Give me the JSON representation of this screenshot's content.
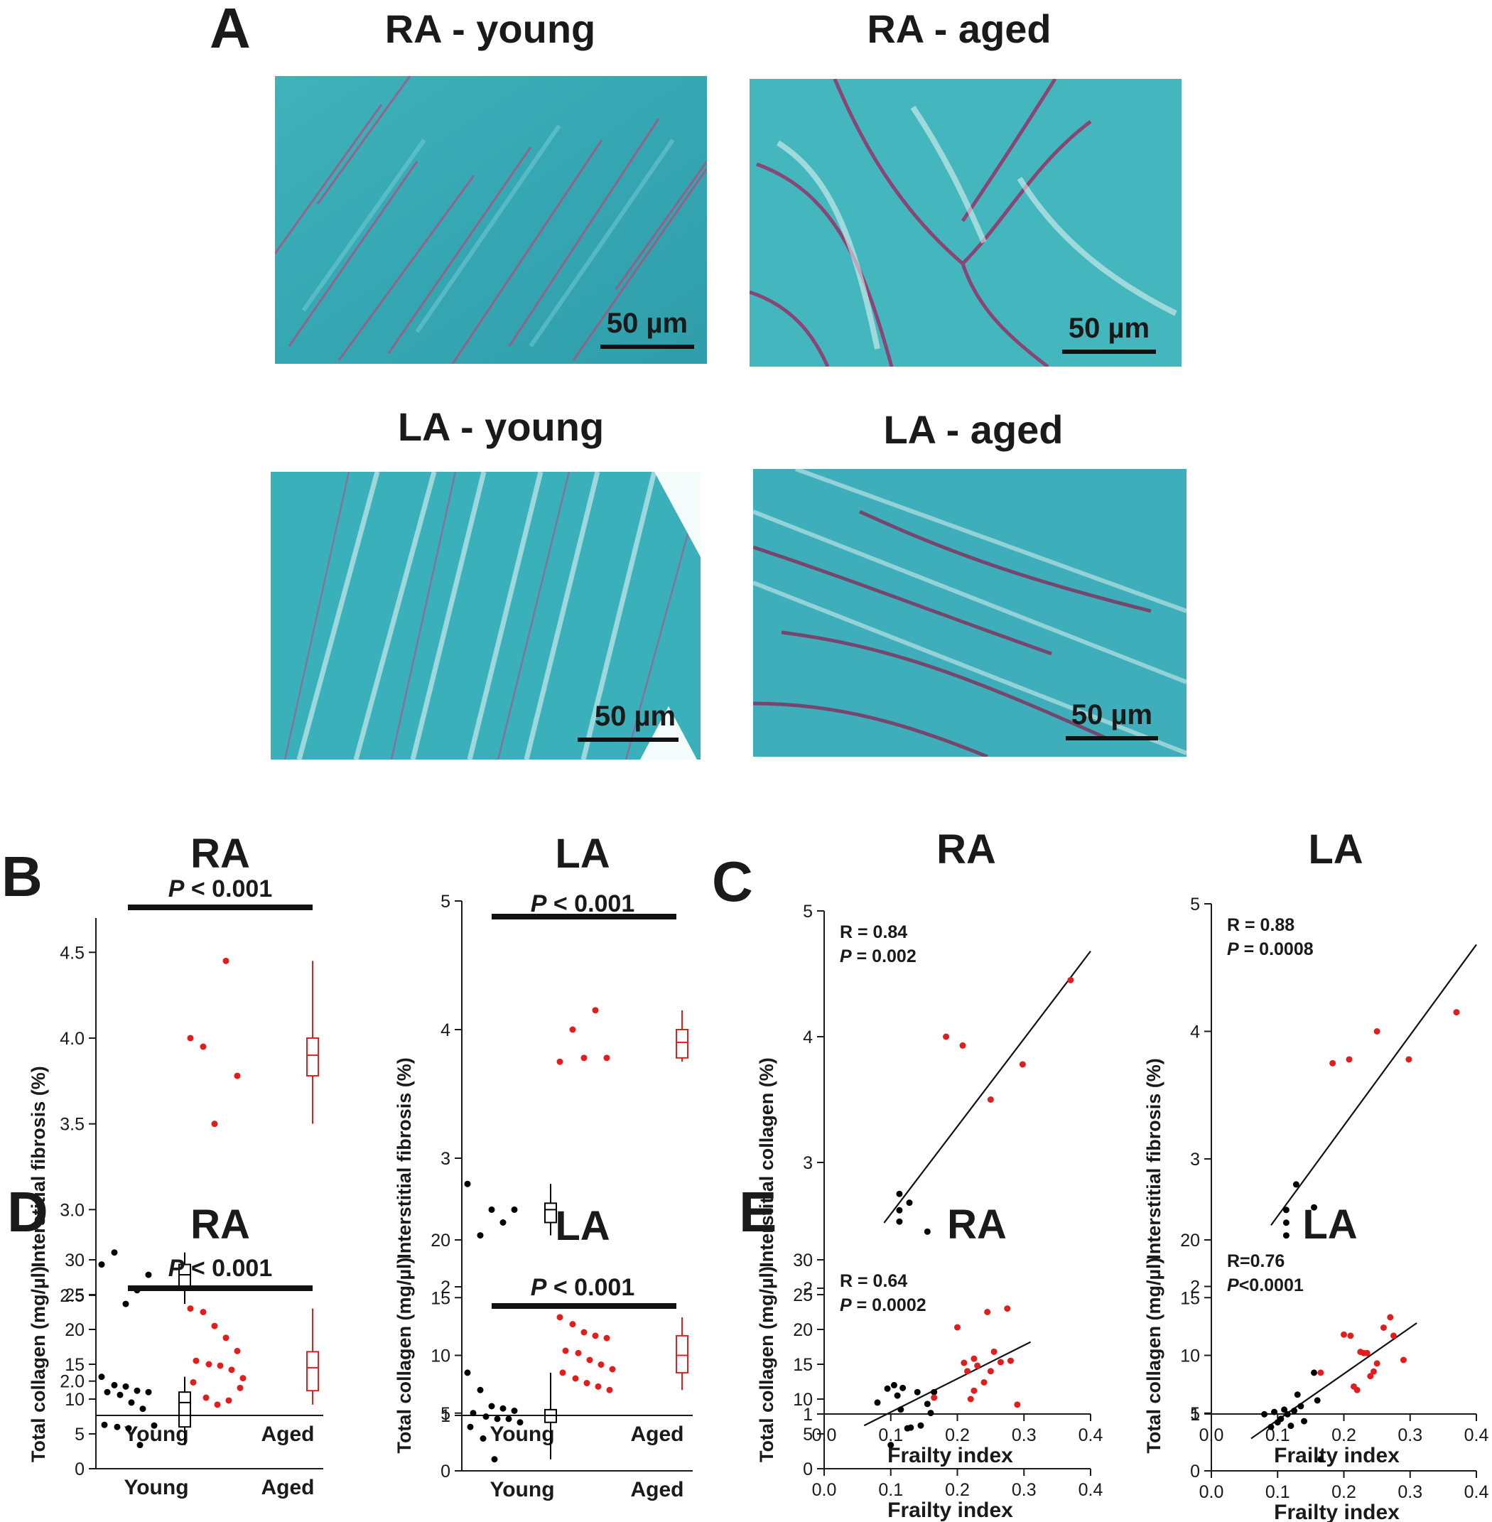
{
  "panel_labels": {
    "A": "A",
    "B": "B",
    "C": "C",
    "D": "D",
    "E": "E"
  },
  "micrographs": [
    {
      "title": "RA - young",
      "scale_bar": "50 µm"
    },
    {
      "title": "RA - aged",
      "scale_bar": "50 µm"
    },
    {
      "title": "LA - young",
      "scale_bar": "50 µm"
    },
    {
      "title": "LA - aged",
      "scale_bar": "50 µm"
    }
  ],
  "colors": {
    "young": "#000000",
    "aged": "#e01e1e",
    "tissue": "#3bb0b8",
    "collagen": "#a0306a"
  },
  "chart_data": [
    {
      "id": "B-RA",
      "type": "scatter",
      "title": "RA",
      "ylabel": "Interstitial fibrosis (%)",
      "categories": [
        "Young",
        "Aged"
      ],
      "ylim": [
        1.8,
        4.7
      ],
      "yticks": [
        "2.0",
        "2.5",
        "3.0",
        "3.5",
        "4.0",
        "4.5"
      ],
      "ytick_values": [
        2.0,
        2.5,
        3.0,
        3.5,
        4.0,
        4.5
      ],
      "significance": "P < 0.001",
      "series": [
        {
          "name": "Young",
          "values": [
            2.68,
            2.75,
            2.45,
            2.53,
            2.62
          ],
          "box": {
            "min": 2.45,
            "q1": 2.53,
            "median": 2.62,
            "q3": 2.68,
            "max": 2.75
          }
        },
        {
          "name": "Aged",
          "values": [
            4.0,
            3.95,
            3.5,
            4.45,
            3.78
          ],
          "box": {
            "min": 3.5,
            "q1": 3.78,
            "median": 3.9,
            "q3": 4.0,
            "max": 4.45
          }
        }
      ]
    },
    {
      "id": "B-LA",
      "type": "scatter",
      "title": "LA",
      "ylabel": "Interstitial fibrosis (%)",
      "categories": [
        "Young",
        "Aged"
      ],
      "ylim": [
        1,
        5
      ],
      "yticks": [
        "1",
        "2",
        "3",
        "4",
        "5"
      ],
      "ytick_values": [
        1,
        2,
        3,
        4,
        5
      ],
      "significance": "P < 0.001",
      "series": [
        {
          "name": "Young",
          "values": [
            2.8,
            2.4,
            2.6,
            2.5,
            2.6
          ],
          "box": {
            "min": 2.4,
            "q1": 2.5,
            "median": 2.6,
            "q3": 2.65,
            "max": 2.8
          }
        },
        {
          "name": "Aged",
          "values": [
            3.75,
            4.0,
            3.78,
            4.15,
            3.78
          ],
          "box": {
            "min": 3.75,
            "q1": 3.78,
            "median": 3.9,
            "q3": 4.0,
            "max": 4.15
          }
        }
      ]
    },
    {
      "id": "C-RA",
      "type": "scatter",
      "title": "RA",
      "xlabel": "Frailty index",
      "ylabel": "Interstitial collagen (%)",
      "xlim": [
        0.0,
        0.4
      ],
      "ylim": [
        1,
        5
      ],
      "xticks": [
        "0.0",
        "0.1",
        "0.2",
        "0.3",
        "0.4"
      ],
      "xtick_values": [
        0.0,
        0.1,
        0.2,
        0.3,
        0.4
      ],
      "yticks": [
        "1",
        "2",
        "3",
        "4",
        "5"
      ],
      "ytick_values": [
        1,
        2,
        3,
        4,
        5
      ],
      "annotation": {
        "r": "R = 0.84",
        "p_italic": "P",
        "p_rest": " = 0.002"
      },
      "fit": {
        "x": [
          0.09,
          0.4
        ],
        "y": [
          2.52,
          4.68
        ]
      },
      "series": [
        {
          "name": "Young",
          "x": [
            0.113,
            0.113,
            0.113,
            0.128,
            0.155
          ],
          "y": [
            2.75,
            2.62,
            2.53,
            2.68,
            2.45
          ]
        },
        {
          "name": "Aged",
          "x": [
            0.183,
            0.208,
            0.25,
            0.298,
            0.37
          ],
          "y": [
            4.0,
            3.93,
            3.5,
            3.78,
            4.45
          ]
        }
      ]
    },
    {
      "id": "C-LA",
      "type": "scatter",
      "title": "LA",
      "xlabel": "Frailty index",
      "ylabel": "Interstitial fibrosis (%)",
      "xlim": [
        0.0,
        0.4
      ],
      "ylim": [
        1,
        5
      ],
      "xticks": [
        "0.0",
        "0.1",
        "0.2",
        "0.3",
        "0.4"
      ],
      "xtick_values": [
        0.0,
        0.1,
        0.2,
        0.3,
        0.4
      ],
      "yticks": [
        "1",
        "2",
        "3",
        "4",
        "5"
      ],
      "ytick_values": [
        1,
        2,
        3,
        4,
        5
      ],
      "annotation": {
        "r": "R = 0.88",
        "p_italic": "P",
        "p_rest": " = 0.0008"
      },
      "fit": {
        "x": [
          0.09,
          0.4
        ],
        "y": [
          2.48,
          4.68
        ]
      },
      "series": [
        {
          "name": "Young",
          "x": [
            0.113,
            0.113,
            0.113,
            0.128,
            0.155
          ],
          "y": [
            2.6,
            2.5,
            2.4,
            2.8,
            2.62
          ]
        },
        {
          "name": "Aged",
          "x": [
            0.183,
            0.208,
            0.25,
            0.298,
            0.37
          ],
          "y": [
            3.75,
            3.78,
            4.0,
            3.78,
            4.15
          ]
        }
      ]
    },
    {
      "id": "D-RA",
      "type": "scatter",
      "title": "RA",
      "ylabel": "Total collagen (mg/µl)",
      "categories": [
        "Young",
        "Aged"
      ],
      "ylim": [
        0,
        30
      ],
      "yticks": [
        "0",
        "5",
        "10",
        "15",
        "20",
        "25",
        "30"
      ],
      "ytick_values": [
        0,
        5,
        10,
        15,
        20,
        25,
        30
      ],
      "significance": "P < 0.001",
      "series": [
        {
          "name": "Young",
          "values": [
            13.2,
            12.0,
            11.8,
            11.2,
            11.0,
            11.0,
            10.6,
            9.5,
            8.6,
            6.2,
            6.3,
            6.0,
            5.8,
            3.4
          ],
          "box": {
            "min": 3.4,
            "q1": 6.0,
            "median": 9.5,
            "q3": 11.0,
            "max": 13.2
          }
        },
        {
          "name": "Aged",
          "values": [
            23.0,
            22.5,
            20.5,
            18.8,
            16.9,
            15.5,
            15.0,
            14.8,
            14.2,
            13.0,
            12.4,
            10.2,
            9.2,
            9.8,
            11.6
          ],
          "box": {
            "min": 9.2,
            "q1": 11.2,
            "median": 14.5,
            "q3": 16.8,
            "max": 23.0
          }
        }
      ]
    },
    {
      "id": "D-LA",
      "type": "scatter",
      "title": "LA",
      "ylabel": "Total collagen (mg/µl)",
      "categories": [
        "Young",
        "Aged"
      ],
      "ylim": [
        0,
        20
      ],
      "yticks": [
        "0",
        "5",
        "10",
        "15",
        "20"
      ],
      "ytick_values": [
        0,
        5,
        10,
        15,
        20
      ],
      "significance": "P < 0.001",
      "series": [
        {
          "name": "Young",
          "values": [
            8.5,
            7.0,
            5.6,
            5.4,
            5.2,
            5.0,
            4.7,
            4.5,
            4.5,
            4.2,
            3.8,
            2.8,
            1.0
          ],
          "box": {
            "min": 1.0,
            "q1": 4.2,
            "median": 4.8,
            "q3": 5.3,
            "max": 8.5
          }
        },
        {
          "name": "Aged",
          "values": [
            13.3,
            12.7,
            12.0,
            11.7,
            11.5,
            10.4,
            10.2,
            9.6,
            9.2,
            8.8,
            8.5,
            8.0,
            7.6,
            7.3,
            7.0
          ],
          "box": {
            "min": 7.0,
            "q1": 8.5,
            "median": 10.0,
            "q3": 11.7,
            "max": 13.3
          }
        }
      ]
    },
    {
      "id": "E-RA",
      "type": "scatter",
      "title": "RA",
      "xlabel": "Frailty index",
      "ylabel": "Total collagen (mg/µl)",
      "xlim": [
        0.0,
        0.4
      ],
      "ylim": [
        0,
        30
      ],
      "xticks": [
        "0.0",
        "0.1",
        "0.2",
        "0.3",
        "0.4"
      ],
      "xtick_values": [
        0.0,
        0.1,
        0.2,
        0.3,
        0.4
      ],
      "yticks": [
        "0",
        "5",
        "10",
        "15",
        "20",
        "25",
        "30"
      ],
      "ytick_values": [
        0,
        5,
        10,
        15,
        20,
        25,
        30
      ],
      "annotation": {
        "r": "R = 0.64",
        "p_italic": "P",
        "p_rest": " = 0.0002"
      },
      "fit": {
        "x": [
          0.06,
          0.31
        ],
        "y": [
          6.2,
          18.2
        ]
      },
      "series": [
        {
          "name": "Young",
          "x": [
            0.08,
            0.095,
            0.105,
            0.11,
            0.115,
            0.118,
            0.125,
            0.13,
            0.14,
            0.145,
            0.155,
            0.16,
            0.165,
            0.1
          ],
          "y": [
            9.5,
            11.5,
            12.0,
            10.5,
            8.5,
            11.6,
            5.8,
            5.9,
            11.0,
            6.2,
            9.3,
            8.0,
            11.0,
            3.4
          ]
        },
        {
          "name": "Aged",
          "x": [
            0.165,
            0.2,
            0.21,
            0.215,
            0.22,
            0.225,
            0.23,
            0.24,
            0.245,
            0.25,
            0.255,
            0.265,
            0.275,
            0.28,
            0.29,
            0.225
          ],
          "y": [
            10.2,
            20.3,
            15.2,
            14.0,
            10.0,
            11.2,
            14.8,
            12.4,
            22.5,
            14.0,
            16.8,
            15.3,
            23.0,
            15.5,
            9.2,
            15.8
          ]
        }
      ]
    },
    {
      "id": "E-LA",
      "type": "scatter",
      "title": "LA",
      "xlabel": "Frailty index",
      "ylabel": "Total collagen (mg/µl)",
      "xlim": [
        0.0,
        0.4
      ],
      "ylim": [
        0,
        20
      ],
      "xticks": [
        "0.0",
        "0.1",
        "0.2",
        "0.3",
        "0.4"
      ],
      "xtick_values": [
        0.0,
        0.1,
        0.2,
        0.3,
        0.4
      ],
      "yticks": [
        "0",
        "5",
        "10",
        "15",
        "20"
      ],
      "ytick_values": [
        0,
        5,
        10,
        15,
        20
      ],
      "annotation": {
        "r": "R=0.76",
        "p_italic": "P",
        "p_rest": "<0.0001"
      },
      "fit": {
        "x": [
          0.06,
          0.31
        ],
        "y": [
          2.8,
          12.8
        ]
      },
      "series": [
        {
          "name": "Young",
          "x": [
            0.08,
            0.09,
            0.095,
            0.1,
            0.105,
            0.11,
            0.115,
            0.12,
            0.125,
            0.13,
            0.135,
            0.14,
            0.155,
            0.16,
            0.165
          ],
          "y": [
            4.9,
            3.8,
            5.1,
            4.2,
            4.5,
            5.3,
            4.9,
            3.9,
            5.2,
            6.6,
            5.6,
            4.3,
            8.5,
            6.1,
            1.0
          ]
        },
        {
          "name": "Aged",
          "x": [
            0.165,
            0.2,
            0.21,
            0.215,
            0.22,
            0.225,
            0.23,
            0.235,
            0.24,
            0.245,
            0.25,
            0.26,
            0.27,
            0.275,
            0.29
          ],
          "y": [
            8.5,
            11.8,
            11.7,
            7.3,
            7.0,
            10.3,
            10.2,
            10.2,
            8.2,
            8.6,
            9.3,
            12.4,
            13.3,
            11.7,
            9.6
          ]
        }
      ]
    }
  ]
}
